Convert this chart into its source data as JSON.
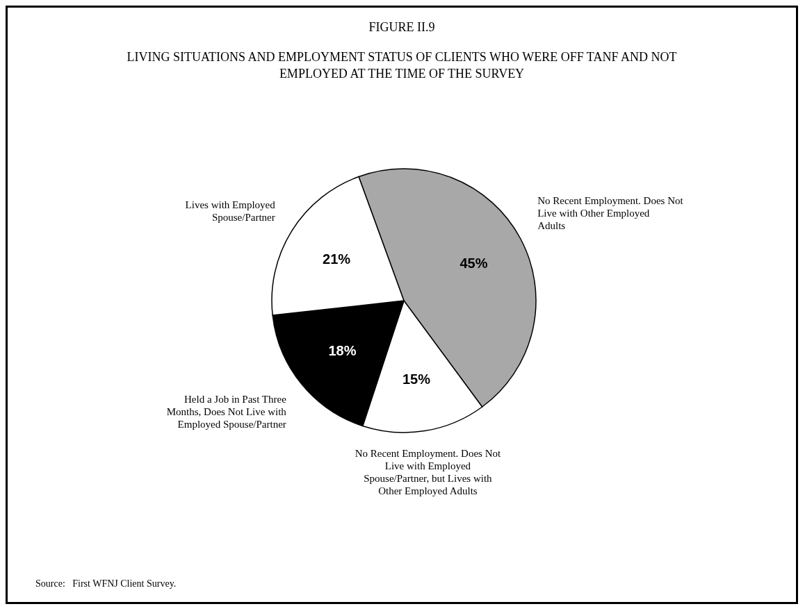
{
  "chart_data": {
    "type": "pie",
    "title": "FIGURE II.9",
    "subtitle": "LIVING SITUATIONS AND EMPLOYMENT STATUS OF CLIENTS WHO WERE OFF TANF AND NOT EMPLOYED AT THE TIME OF THE SURVEY",
    "categories": [
      "No Recent Employment. Does Not Live with Other Employed Adults",
      "No Recent Employment. Does Not Live with Employed Spouse/Partner, but Lives with Other Employed Adults",
      "Held a Job in Past Three Months, Does Not Live with Employed Spouse/Partner",
      "Lives with Employed Spouse/Partner"
    ],
    "values": [
      45,
      15,
      18,
      21
    ],
    "value_labels": [
      "45%",
      "15%",
      "18%",
      "21%"
    ],
    "colors": [
      "#a8a8a8",
      "#ffffff",
      "#000000",
      "#ffffff"
    ],
    "annotations": [
      "Source:   First WFNJ Client Survey."
    ]
  }
}
